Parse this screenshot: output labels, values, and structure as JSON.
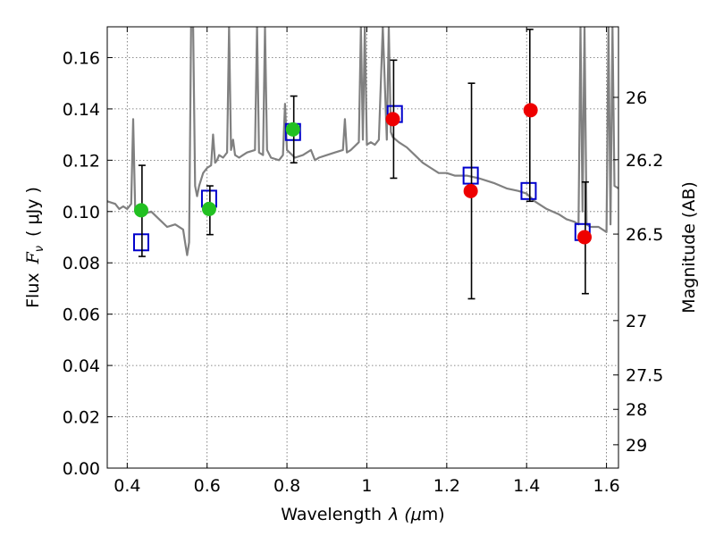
{
  "chart_data": {
    "type": "scatter",
    "xlabel": "Wavelength",
    "xlabel_symbol": "λ (",
    "xlabel_unit_mu": "μ",
    "xlabel_unit_rest": "m)",
    "ylabel": "Flux",
    "ylabel_symbol_main": "F",
    "ylabel_symbol_sub": "ν",
    "ylabel_unit": "( μJy )",
    "y2label": "Magnitude (AB)",
    "xlim": [
      0.35,
      1.63
    ],
    "ylim": [
      0.0,
      0.172
    ],
    "grid": true,
    "x_ticks": [
      0.4,
      0.6,
      0.8,
      1.0,
      1.2,
      1.4,
      1.6
    ],
    "x_tick_labels": [
      "0.4",
      "0.6",
      "0.8",
      "1",
      "1.2",
      "1.4",
      "1.6"
    ],
    "y_ticks": [
      0.0,
      0.02,
      0.04,
      0.06,
      0.08,
      0.1,
      0.12,
      0.14,
      0.16
    ],
    "y_tick_labels": [
      "0.00",
      "0.02",
      "0.04",
      "0.06",
      "0.08",
      "0.10",
      "0.12",
      "0.14",
      "0.16"
    ],
    "y2_ticks": [
      {
        "label": "26",
        "flux": 0.1445
      },
      {
        "label": "26.2",
        "flux": 0.1202
      },
      {
        "label": "26.5",
        "flux": 0.0912
      },
      {
        "label": "27",
        "flux": 0.0575
      },
      {
        "label": "27.5",
        "flux": 0.0363
      },
      {
        "label": "28",
        "flux": 0.0229
      },
      {
        "label": "29",
        "flux": 0.0091
      }
    ],
    "sed_model": {
      "color": "#808080",
      "x": [
        0.35,
        0.37,
        0.38,
        0.39,
        0.4,
        0.41,
        0.415,
        0.42,
        0.43,
        0.44,
        0.46,
        0.48,
        0.5,
        0.52,
        0.54,
        0.545,
        0.55,
        0.555,
        0.56,
        0.565,
        0.57,
        0.575,
        0.58,
        0.59,
        0.6,
        0.61,
        0.615,
        0.62,
        0.625,
        0.63,
        0.64,
        0.65,
        0.655,
        0.66,
        0.665,
        0.67,
        0.68,
        0.69,
        0.7,
        0.72,
        0.725,
        0.73,
        0.74,
        0.745,
        0.75,
        0.76,
        0.78,
        0.79,
        0.795,
        0.8,
        0.82,
        0.84,
        0.86,
        0.87,
        0.88,
        0.9,
        0.92,
        0.94,
        0.945,
        0.95,
        0.96,
        0.98,
        0.985,
        0.99,
        0.995,
        1.0,
        1.01,
        1.02,
        1.03,
        1.04,
        1.05,
        1.055,
        1.06,
        1.065,
        1.08,
        1.1,
        1.12,
        1.14,
        1.16,
        1.18,
        1.2,
        1.22,
        1.25,
        1.28,
        1.3,
        1.32,
        1.35,
        1.38,
        1.4,
        1.42,
        1.45,
        1.48,
        1.5,
        1.52,
        1.53,
        1.535,
        1.54,
        1.545,
        1.55,
        1.56,
        1.58,
        1.6,
        1.605,
        1.61,
        1.615,
        1.62,
        1.63
      ],
      "y": [
        0.104,
        0.103,
        0.101,
        0.102,
        0.101,
        0.103,
        0.136,
        0.1,
        0.101,
        0.099,
        0.1,
        0.097,
        0.094,
        0.095,
        0.093,
        0.088,
        0.083,
        0.088,
        0.172,
        0.172,
        0.11,
        0.106,
        0.11,
        0.115,
        0.117,
        0.118,
        0.13,
        0.119,
        0.12,
        0.122,
        0.121,
        0.123,
        0.172,
        0.124,
        0.128,
        0.122,
        0.121,
        0.122,
        0.123,
        0.124,
        0.172,
        0.123,
        0.122,
        0.172,
        0.124,
        0.121,
        0.12,
        0.122,
        0.142,
        0.124,
        0.121,
        0.122,
        0.124,
        0.12,
        0.121,
        0.122,
        0.123,
        0.124,
        0.136,
        0.123,
        0.124,
        0.127,
        0.172,
        0.128,
        0.172,
        0.126,
        0.127,
        0.126,
        0.128,
        0.172,
        0.128,
        0.172,
        0.131,
        0.129,
        0.127,
        0.125,
        0.122,
        0.119,
        0.117,
        0.115,
        0.115,
        0.114,
        0.114,
        0.113,
        0.112,
        0.111,
        0.109,
        0.108,
        0.107,
        0.104,
        0.101,
        0.099,
        0.097,
        0.096,
        0.095,
        0.172,
        0.1,
        0.172,
        0.095,
        0.094,
        0.094,
        0.092,
        0.172,
        0.095,
        0.172,
        0.11,
        0.109
      ]
    },
    "series": [
      {
        "marker": "open-square",
        "color": "#0000cc",
        "x": [
          0.435,
          0.605,
          0.815,
          1.07,
          1.26,
          1.405,
          1.54
        ],
        "y": [
          0.088,
          0.105,
          0.131,
          0.138,
          0.114,
          0.108,
          0.092
        ]
      },
      {
        "marker": "filled-circle",
        "color": "#22c022",
        "x": [
          0.435,
          0.605,
          0.815
        ],
        "y": [
          0.1005,
          0.101,
          0.132
        ]
      },
      {
        "marker": "filled-circle",
        "color": "#ee0000",
        "x": [
          1.065,
          1.26,
          1.41,
          1.545
        ],
        "y": [
          0.136,
          0.108,
          0.1395,
          0.09
        ]
      }
    ],
    "error_bars": [
      {
        "x": 0.437,
        "low": 0.0825,
        "high": 0.118
      },
      {
        "x": 0.607,
        "low": 0.091,
        "high": 0.11
      },
      {
        "x": 0.817,
        "low": 0.119,
        "high": 0.145
      },
      {
        "x": 1.067,
        "low": 0.113,
        "high": 0.159
      },
      {
        "x": 1.262,
        "low": 0.066,
        "high": 0.15
      },
      {
        "x": 1.408,
        "low": 0.104,
        "high": 0.171
      },
      {
        "x": 1.547,
        "low": 0.068,
        "high": 0.1115
      }
    ]
  }
}
